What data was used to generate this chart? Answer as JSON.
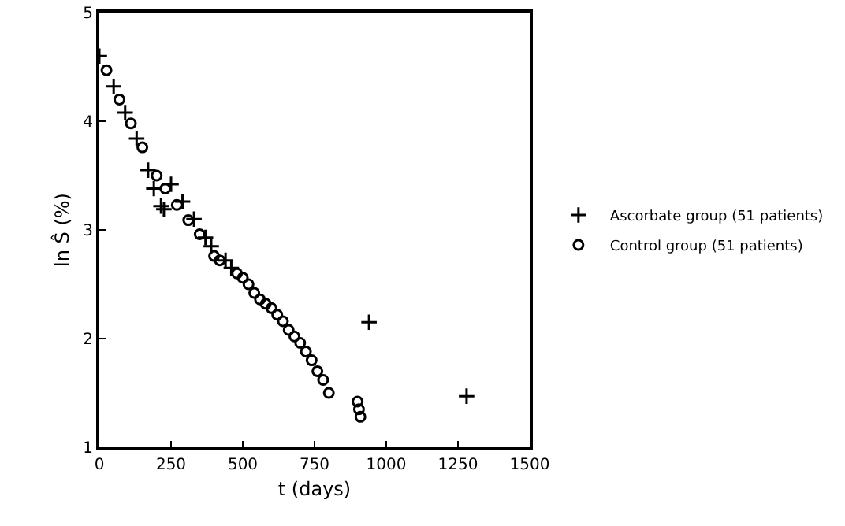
{
  "chart_data": {
    "type": "scatter",
    "xlabel": "t (days)",
    "ylabel": "ln Ŝ (%)",
    "xlim": [
      0,
      1500
    ],
    "xticks": [
      0,
      250,
      500,
      750,
      1000,
      1250,
      1500
    ],
    "ylim": [
      1,
      5
    ],
    "yticks": [
      1,
      2,
      3,
      4,
      5
    ],
    "grid": false,
    "legend": "right",
    "series": [
      {
        "name": "Ascorbate group (51 patients)",
        "color": "#000000",
        "marker": "cross",
        "x": [
          0,
          50,
          90,
          130,
          170,
          190,
          215,
          225,
          250,
          290,
          330,
          370,
          390,
          440,
          460,
          940,
          1280
        ],
        "values": [
          4.6,
          4.32,
          4.08,
          3.84,
          3.55,
          3.38,
          3.22,
          3.19,
          3.42,
          3.26,
          3.1,
          2.93,
          2.85,
          2.72,
          2.65,
          2.15,
          1.47
        ]
      },
      {
        "name": "Control group (51 patients)",
        "color": "#000000",
        "marker": "circle",
        "x": [
          25,
          70,
          110,
          150,
          200,
          230,
          270,
          310,
          350,
          400,
          420,
          480,
          500,
          520,
          540,
          560,
          580,
          600,
          620,
          640,
          660,
          680,
          700,
          720,
          740,
          760,
          780,
          800,
          900,
          905,
          910
        ],
        "values": [
          4.47,
          4.2,
          3.98,
          3.76,
          3.5,
          3.38,
          3.23,
          3.09,
          2.96,
          2.76,
          2.72,
          2.6,
          2.56,
          2.5,
          2.42,
          2.36,
          2.32,
          2.28,
          2.22,
          2.16,
          2.08,
          2.02,
          1.96,
          1.88,
          1.8,
          1.7,
          1.62,
          1.5,
          1.42,
          1.35,
          1.28
        ]
      }
    ]
  }
}
